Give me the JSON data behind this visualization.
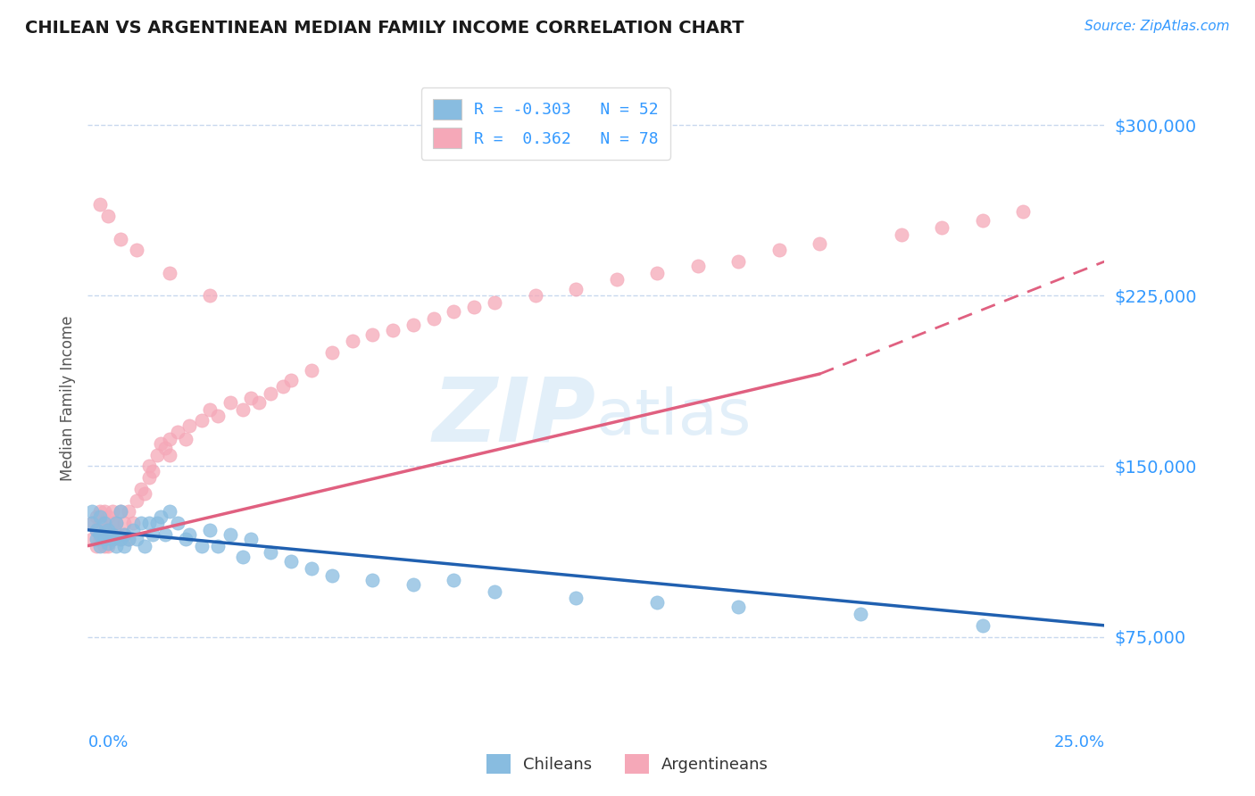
{
  "title": "CHILEAN VS ARGENTINEAN MEDIAN FAMILY INCOME CORRELATION CHART",
  "source": "Source: ZipAtlas.com",
  "ylabel": "Median Family Income",
  "xlim": [
    0.0,
    0.25
  ],
  "ylim": [
    40000,
    320000
  ],
  "yticks": [
    75000,
    150000,
    225000,
    300000
  ],
  "ytick_labels": [
    "$75,000",
    "$150,000",
    "$225,000",
    "$300,000"
  ],
  "watermark": "ZIPatlas",
  "legend_r1": "R = -0.303   N = 52",
  "legend_r2": "R =  0.362   N = 78",
  "chilean_color": "#88bce0",
  "argentinean_color": "#f5a8b8",
  "trend_chilean_color": "#2060b0",
  "trend_argentinean_color": "#e06080",
  "axis_color": "#3399ff",
  "background_color": "#ffffff",
  "grid_color": "#c8d8ee",
  "chilean_scatter_x": [
    0.001,
    0.001,
    0.002,
    0.002,
    0.003,
    0.003,
    0.003,
    0.004,
    0.004,
    0.005,
    0.005,
    0.006,
    0.006,
    0.007,
    0.007,
    0.008,
    0.008,
    0.009,
    0.009,
    0.01,
    0.011,
    0.012,
    0.013,
    0.014,
    0.015,
    0.016,
    0.017,
    0.018,
    0.019,
    0.02,
    0.022,
    0.024,
    0.025,
    0.028,
    0.03,
    0.032,
    0.035,
    0.038,
    0.04,
    0.045,
    0.05,
    0.055,
    0.06,
    0.07,
    0.08,
    0.09,
    0.1,
    0.12,
    0.14,
    0.16,
    0.19,
    0.22
  ],
  "chilean_scatter_y": [
    130000,
    125000,
    122000,
    118000,
    128000,
    120000,
    115000,
    125000,
    118000,
    122000,
    116000,
    120000,
    118000,
    115000,
    125000,
    118000,
    130000,
    120000,
    115000,
    118000,
    122000,
    118000,
    125000,
    115000,
    125000,
    120000,
    125000,
    128000,
    120000,
    130000,
    125000,
    118000,
    120000,
    115000,
    122000,
    115000,
    120000,
    110000,
    118000,
    112000,
    108000,
    105000,
    102000,
    100000,
    98000,
    100000,
    95000,
    92000,
    90000,
    88000,
    85000,
    80000
  ],
  "argentinean_scatter_x": [
    0.001,
    0.001,
    0.002,
    0.002,
    0.002,
    0.003,
    0.003,
    0.003,
    0.004,
    0.004,
    0.004,
    0.005,
    0.005,
    0.005,
    0.006,
    0.006,
    0.006,
    0.007,
    0.007,
    0.008,
    0.008,
    0.009,
    0.009,
    0.01,
    0.01,
    0.011,
    0.012,
    0.013,
    0.014,
    0.015,
    0.015,
    0.016,
    0.017,
    0.018,
    0.019,
    0.02,
    0.02,
    0.022,
    0.024,
    0.025,
    0.028,
    0.03,
    0.032,
    0.035,
    0.038,
    0.04,
    0.042,
    0.045,
    0.048,
    0.05,
    0.055,
    0.06,
    0.065,
    0.07,
    0.075,
    0.08,
    0.085,
    0.09,
    0.095,
    0.1,
    0.11,
    0.12,
    0.13,
    0.14,
    0.15,
    0.16,
    0.17,
    0.18,
    0.2,
    0.21,
    0.22,
    0.23,
    0.003,
    0.005,
    0.008,
    0.012,
    0.02,
    0.03
  ],
  "argentinean_scatter_y": [
    125000,
    118000,
    128000,
    122000,
    115000,
    130000,
    125000,
    118000,
    130000,
    122000,
    115000,
    128000,
    120000,
    115000,
    130000,
    125000,
    118000,
    125000,
    120000,
    130000,
    118000,
    125000,
    120000,
    130000,
    118000,
    125000,
    135000,
    140000,
    138000,
    150000,
    145000,
    148000,
    155000,
    160000,
    158000,
    162000,
    155000,
    165000,
    162000,
    168000,
    170000,
    175000,
    172000,
    178000,
    175000,
    180000,
    178000,
    182000,
    185000,
    188000,
    192000,
    200000,
    205000,
    208000,
    210000,
    212000,
    215000,
    218000,
    220000,
    222000,
    225000,
    228000,
    232000,
    235000,
    238000,
    240000,
    245000,
    248000,
    252000,
    255000,
    258000,
    262000,
    265000,
    260000,
    250000,
    245000,
    235000,
    225000
  ]
}
